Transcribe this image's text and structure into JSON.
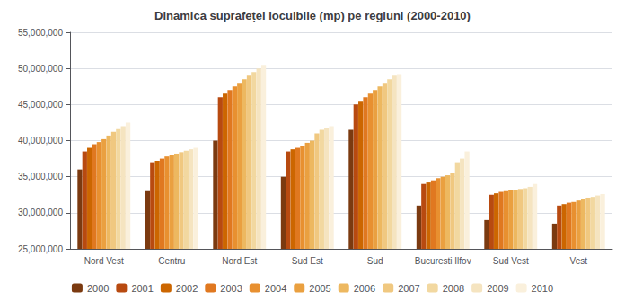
{
  "chart_data": {
    "type": "bar",
    "title": "Dinamica suprafeței locuibile (mp) pe regiuni (2000-2010)",
    "categories": [
      "Nord Vest",
      "Centru",
      "Nord Est",
      "Sud Est",
      "Sud",
      "Bucuresti Ilfov",
      "Sud Vest",
      "Vest"
    ],
    "series": [
      {
        "name": "2000",
        "color": "#7B3A10",
        "values": [
          36000000,
          33000000,
          40000000,
          35000000,
          41500000,
          31000000,
          29000000,
          28500000
        ]
      },
      {
        "name": "2001",
        "color": "#B84A10",
        "values": [
          38500000,
          37000000,
          46000000,
          38500000,
          45000000,
          34000000,
          32500000,
          31000000
        ]
      },
      {
        "name": "2002",
        "color": "#CC6600",
        "values": [
          39000000,
          37200000,
          46500000,
          38800000,
          45500000,
          34200000,
          32700000,
          31200000
        ]
      },
      {
        "name": "2003",
        "color": "#E07820",
        "values": [
          39500000,
          37500000,
          47000000,
          39000000,
          46000000,
          34500000,
          32900000,
          31400000
        ]
      },
      {
        "name": "2004",
        "color": "#E89030",
        "values": [
          39800000,
          37800000,
          47500000,
          39300000,
          46500000,
          34800000,
          33000000,
          31500000
        ]
      },
      {
        "name": "2005",
        "color": "#EAA040",
        "values": [
          40200000,
          38000000,
          48000000,
          39700000,
          47000000,
          35000000,
          33100000,
          31700000
        ]
      },
      {
        "name": "2006",
        "color": "#EDB860",
        "values": [
          40700000,
          38200000,
          48500000,
          40000000,
          47500000,
          35200000,
          33200000,
          31900000
        ]
      },
      {
        "name": "2007",
        "color": "#F0C880",
        "values": [
          41200000,
          38400000,
          49000000,
          41000000,
          48000000,
          35500000,
          33300000,
          32100000
        ]
      },
      {
        "name": "2008",
        "color": "#F2D8A0",
        "values": [
          41600000,
          38600000,
          49500000,
          41500000,
          48500000,
          37000000,
          33400000,
          32200000
        ]
      },
      {
        "name": "2009",
        "color": "#F5E4C0",
        "values": [
          42000000,
          38800000,
          50000000,
          41800000,
          49000000,
          37500000,
          33600000,
          32400000
        ]
      },
      {
        "name": "2010",
        "color": "#FAF0DC",
        "values": [
          42500000,
          39000000,
          50500000,
          42000000,
          49200000,
          38500000,
          34000000,
          32600000
        ]
      }
    ],
    "ylim": [
      25000000,
      55000000
    ],
    "yticks": [
      {
        "value": 25000000,
        "label": "25,000,000"
      },
      {
        "value": 30000000,
        "label": "30,000,000"
      },
      {
        "value": 35000000,
        "label": "35,000,000"
      },
      {
        "value": 40000000,
        "label": "40,000,000"
      },
      {
        "value": 45000000,
        "label": "45,000,000"
      },
      {
        "value": 50000000,
        "label": "50,000,000"
      },
      {
        "value": 55000000,
        "label": "55,000,000"
      }
    ],
    "grid": true,
    "legend": "bottom"
  }
}
